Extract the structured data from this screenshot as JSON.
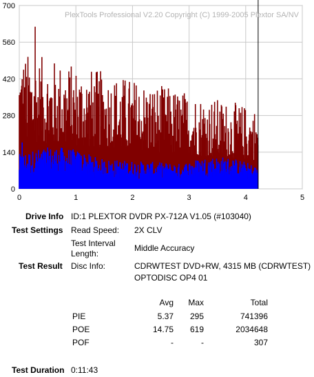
{
  "chart_data": {
    "type": "bar",
    "title": "PlexTools Professional V2.20 Copyright (C) 1999-2005 Plextor SA/NV",
    "xlim": [
      0,
      5
    ],
    "ylim": [
      0,
      700
    ],
    "x_ticks": [
      "0",
      "1",
      "2",
      "3",
      "4",
      "5"
    ],
    "y_ticks": [
      "0",
      "140",
      "280",
      "420",
      "560",
      "700"
    ],
    "grid": true,
    "data_end_x": 4.22,
    "marker_x": 4.22,
    "series": [
      {
        "name": "POE",
        "color": "#800000",
        "max": 619,
        "avg": 14.75
      },
      {
        "name": "PIE",
        "color": "#0000ff",
        "max": 295,
        "avg": 5.37
      }
    ]
  },
  "info": {
    "drive_info_label": "Drive Info",
    "drive_info_value": "ID:1 PLEXTOR DVDR PX-712A V1.05 (#103040)",
    "test_settings_label": "Test Settings",
    "read_speed_label": "Read Speed:",
    "read_speed_value": "2X CLV",
    "interval_label_1": "Test Interval",
    "interval_label_2": "Length:",
    "interval_value": "Middle Accuracy",
    "test_result_label": "Test Result",
    "disc_info_label": "Disc Info:",
    "disc_info_value_1": "CDRWTEST DVD+RW, 4315 MB (CDRWTEST)",
    "disc_info_value_2": "OPTODISC OP4 01",
    "test_duration_label": "Test Duration",
    "test_duration_value": "0:11:43"
  },
  "results": {
    "headers": {
      "avg": "Avg",
      "max": "Max",
      "total": "Total"
    },
    "rows": [
      {
        "name": "PIE",
        "avg": "5.37",
        "max": "295",
        "total": "741396"
      },
      {
        "name": "POE",
        "avg": "14.75",
        "max": "619",
        "total": "2034648"
      },
      {
        "name": "POF",
        "avg": "-",
        "max": "-",
        "total": "307"
      }
    ]
  }
}
